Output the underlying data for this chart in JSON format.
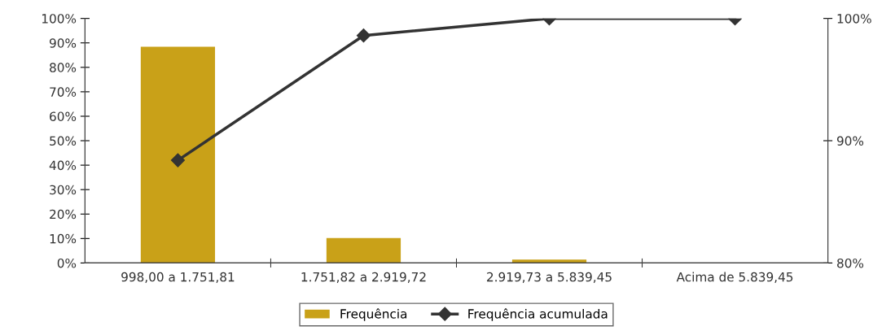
{
  "chart_data": {
    "type": "bar",
    "categories": [
      "998,00 a 1.751,81",
      "1.751,82 a 2.919,72",
      "2.919,73 a 5.839,45",
      "Acima de 5.839,45"
    ],
    "series": [
      {
        "name": "Frequência",
        "color": "#c9a118",
        "values": [
          88.4,
          10.2,
          1.4,
          0
        ]
      },
      {
        "name": "Frequência acumulada",
        "type": "line",
        "axis": "y2",
        "color": "#333333",
        "marker": "diamond",
        "values": [
          88.4,
          98.6,
          100,
          100
        ]
      }
    ],
    "ylim": [
      0,
      100
    ],
    "yticks": [
      {
        "value": 0,
        "label": "0%"
      },
      {
        "value": 10,
        "label": "10%"
      },
      {
        "value": 20,
        "label": "20%"
      },
      {
        "value": 30,
        "label": "30%"
      },
      {
        "value": 40,
        "label": "40%"
      },
      {
        "value": 50,
        "label": "50%"
      },
      {
        "value": 60,
        "label": "60%"
      },
      {
        "value": 70,
        "label": "70%"
      },
      {
        "value": 80,
        "label": "80%"
      },
      {
        "value": 90,
        "label": "90%"
      },
      {
        "value": 100,
        "label": "100%"
      }
    ],
    "y2lim": [
      80,
      100
    ],
    "y2ticks": [
      {
        "value": 80,
        "label": "80%"
      },
      {
        "value": 90,
        "label": "90%"
      },
      {
        "value": 100,
        "label": "100%"
      }
    ],
    "legend": "bottom",
    "grid": false
  }
}
